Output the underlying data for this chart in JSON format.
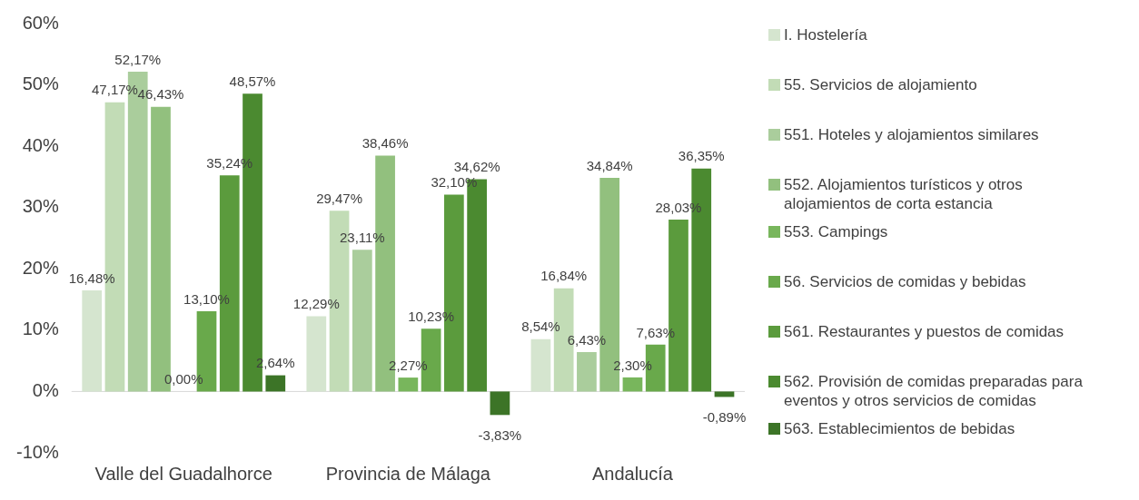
{
  "chart_data": {
    "type": "bar",
    "categories": [
      "Valle del Guadalhorce",
      "Provincia de Málaga",
      "Andalucía"
    ],
    "ylim": [
      -10,
      60
    ],
    "yticks": [
      {
        "value": -10,
        "label": "-10%"
      },
      {
        "value": 0,
        "label": "0%"
      },
      {
        "value": 10,
        "label": "10%"
      },
      {
        "value": 20,
        "label": "20%"
      },
      {
        "value": 30,
        "label": "30%"
      },
      {
        "value": 40,
        "label": "40%"
      },
      {
        "value": 50,
        "label": "50%"
      },
      {
        "value": 60,
        "label": "60%"
      }
    ],
    "grid": false,
    "legend": "right",
    "data_labels": true,
    "ref_lines": [
      {
        "axis": "y",
        "value": 0,
        "color": "#d9d9d9"
      }
    ],
    "series": [
      {
        "name": "I. Hostelería",
        "color": "#d5e5cf",
        "values": [
          16.48,
          12.29,
          8.54
        ],
        "value_labels": [
          "16,48%",
          "12,29%",
          "8,54%"
        ]
      },
      {
        "name": "55. Servicios de alojamiento",
        "color": "#c2dcb6",
        "values": [
          47.17,
          29.47,
          16.84
        ],
        "value_labels": [
          "47,17%",
          "29,47%",
          "16,84%"
        ]
      },
      {
        "name": "551. Hoteles y alojamientos similares",
        "color": "#aacd9c",
        "values": [
          52.17,
          23.11,
          6.43
        ],
        "value_labels": [
          "52,17%",
          "23,11%",
          "6,43%"
        ]
      },
      {
        "name": "552. Alojamientos turísticos y otros alojamientos de corta estancia",
        "color": "#92c07e",
        "values": [
          46.43,
          38.46,
          34.84
        ],
        "value_labels": [
          "46,43%",
          "38,46%",
          "34,84%"
        ]
      },
      {
        "name": "553. Campings",
        "color": "#78b65c",
        "values": [
          0,
          2.27,
          2.3
        ],
        "value_labels": [
          "0,00%",
          "2,27%",
          "2,30%"
        ]
      },
      {
        "name": "56. Servicios de comidas y bebidas",
        "color": "#69a94b",
        "values": [
          13.1,
          10.23,
          7.63
        ],
        "value_labels": [
          "13,10%",
          "10,23%",
          "7,63%"
        ]
      },
      {
        "name": "561. Restaurantes y puestos de comidas",
        "color": "#5b9b3d",
        "values": [
          35.24,
          32.1,
          28.03
        ],
        "value_labels": [
          "35,24%",
          "32,10%",
          "28,03%"
        ]
      },
      {
        "name": "562. Provisión de comidas preparadas para eventos y otros servicios de comidas",
        "color": "#4b8a30",
        "values": [
          48.57,
          34.62,
          36.35
        ],
        "value_labels": [
          "48,57%",
          "34,62%",
          "36,35%"
        ]
      },
      {
        "name": "563. Establecimientos de bebidas",
        "color": "#3c7427",
        "values": [
          2.64,
          -3.83,
          -0.89
        ],
        "value_labels": [
          "2,64%",
          "-3,83%",
          "-0,89%"
        ]
      }
    ]
  }
}
